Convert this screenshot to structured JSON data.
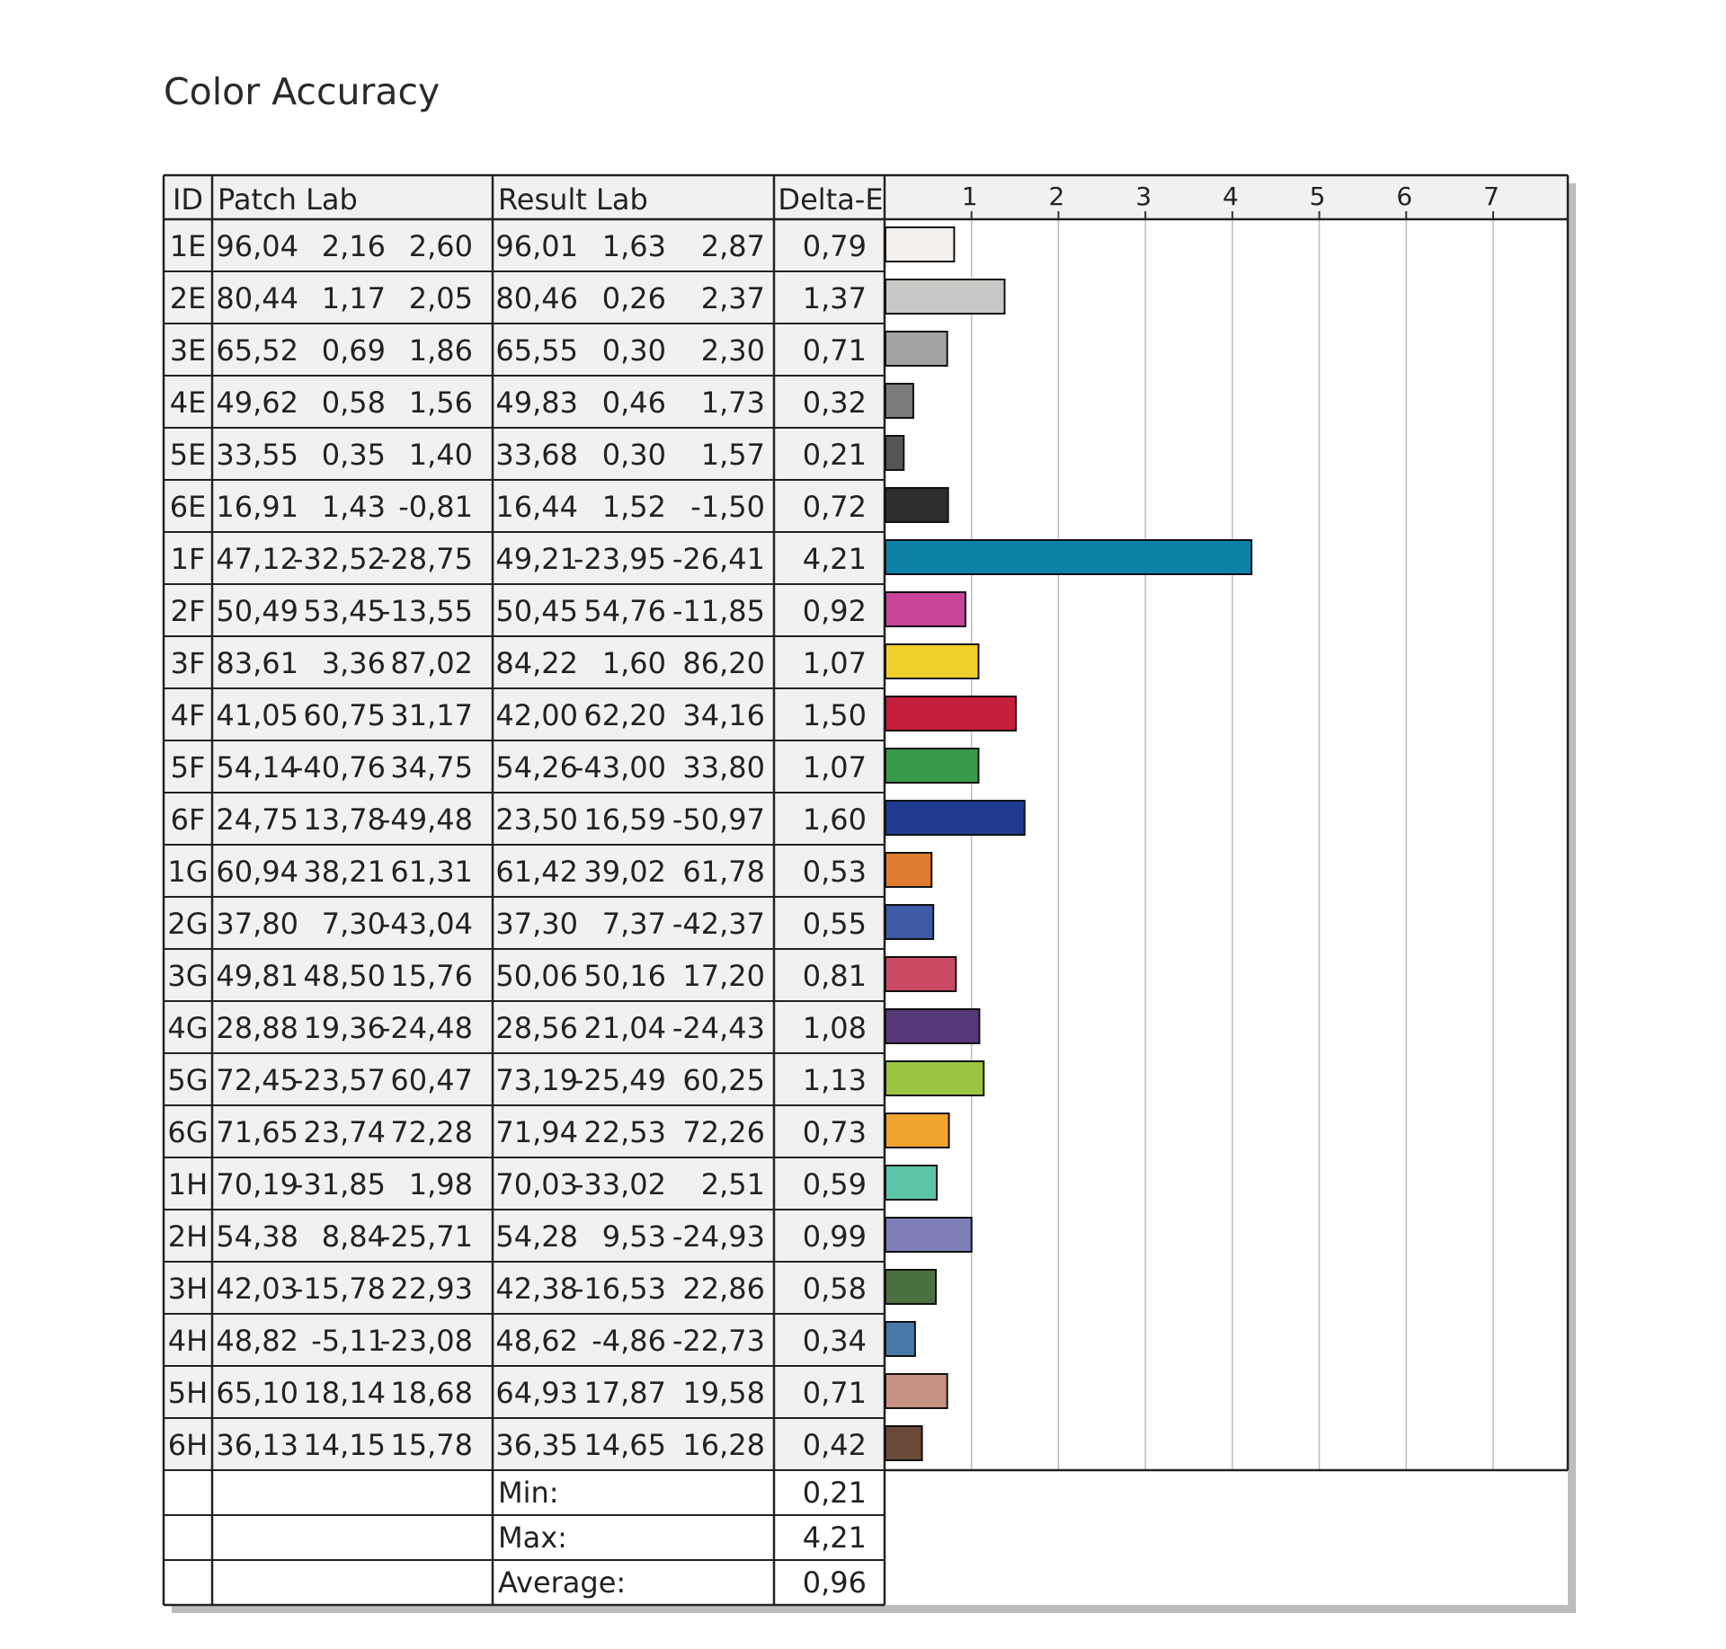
{
  "title": "Color Accuracy",
  "table": {
    "headers": {
      "id": "ID",
      "patch": "Patch Lab",
      "result": "Result Lab",
      "delta": "Delta-E"
    },
    "summary": [
      {
        "label": "Min:",
        "value": "0,21"
      },
      {
        "label": "Max:",
        "value": "4,21"
      },
      {
        "label": "Average:",
        "value": "0,96"
      }
    ]
  },
  "chart_data": {
    "type": "bar",
    "title": "Color Accuracy",
    "xlabel": "",
    "ylabel": "",
    "xlim": [
      0,
      8
    ],
    "ticks": [
      1,
      2,
      3,
      4,
      5,
      6,
      7
    ],
    "grid": true,
    "categories": [
      "1E",
      "2E",
      "3E",
      "4E",
      "5E",
      "6E",
      "1F",
      "2F",
      "3F",
      "4F",
      "5F",
      "6F",
      "1G",
      "2G",
      "3G",
      "4G",
      "5G",
      "6G",
      "1H",
      "2H",
      "3H",
      "4H",
      "5H",
      "6H"
    ],
    "values": [
      0.79,
      1.37,
      0.71,
      0.32,
      0.21,
      0.72,
      4.21,
      0.92,
      1.07,
      1.5,
      1.07,
      1.6,
      0.53,
      0.55,
      0.81,
      1.08,
      1.13,
      0.73,
      0.59,
      0.99,
      0.58,
      0.34,
      0.71,
      0.42
    ],
    "value_labels": [
      "0,79",
      "1,37",
      "0,71",
      "0,32",
      "0,21",
      "0,72",
      "4,21",
      "0,92",
      "1,07",
      "1,50",
      "1,07",
      "1,60",
      "0,53",
      "0,55",
      "0,81",
      "1,08",
      "1,13",
      "0,73",
      "0,59",
      "0,99",
      "0,58",
      "0,34",
      "0,71",
      "0,42"
    ],
    "patch_lab": [
      [
        "96,04",
        "2,16",
        "2,60"
      ],
      [
        "80,44",
        "1,17",
        "2,05"
      ],
      [
        "65,52",
        "0,69",
        "1,86"
      ],
      [
        "49,62",
        "0,58",
        "1,56"
      ],
      [
        "33,55",
        "0,35",
        "1,40"
      ],
      [
        "16,91",
        "1,43",
        "-0,81"
      ],
      [
        "47,12",
        "-32,52",
        "-28,75"
      ],
      [
        "50,49",
        "53,45",
        "-13,55"
      ],
      [
        "83,61",
        "3,36",
        "87,02"
      ],
      [
        "41,05",
        "60,75",
        "31,17"
      ],
      [
        "54,14",
        "-40,76",
        "34,75"
      ],
      [
        "24,75",
        "13,78",
        "-49,48"
      ],
      [
        "60,94",
        "38,21",
        "61,31"
      ],
      [
        "37,80",
        "7,30",
        "-43,04"
      ],
      [
        "49,81",
        "48,50",
        "15,76"
      ],
      [
        "28,88",
        "19,36",
        "-24,48"
      ],
      [
        "72,45",
        "-23,57",
        "60,47"
      ],
      [
        "71,65",
        "23,74",
        "72,28"
      ],
      [
        "70,19",
        "-31,85",
        "1,98"
      ],
      [
        "54,38",
        "8,84",
        "-25,71"
      ],
      [
        "42,03",
        "-15,78",
        "22,93"
      ],
      [
        "48,82",
        "-5,11",
        "-23,08"
      ],
      [
        "65,10",
        "18,14",
        "18,68"
      ],
      [
        "36,13",
        "14,15",
        "15,78"
      ]
    ],
    "result_lab": [
      [
        "96,01",
        "1,63",
        "2,87"
      ],
      [
        "80,46",
        "0,26",
        "2,37"
      ],
      [
        "65,55",
        "0,30",
        "2,30"
      ],
      [
        "49,83",
        "0,46",
        "1,73"
      ],
      [
        "33,68",
        "0,30",
        "1,57"
      ],
      [
        "16,44",
        "1,52",
        "-1,50"
      ],
      [
        "49,21",
        "-23,95",
        "-26,41"
      ],
      [
        "50,45",
        "54,76",
        "-11,85"
      ],
      [
        "84,22",
        "1,60",
        "86,20"
      ],
      [
        "42,00",
        "62,20",
        "34,16"
      ],
      [
        "54,26",
        "-43,00",
        "33,80"
      ],
      [
        "23,50",
        "16,59",
        "-50,97"
      ],
      [
        "61,42",
        "39,02",
        "61,78"
      ],
      [
        "37,30",
        "7,37",
        "-42,37"
      ],
      [
        "50,06",
        "50,16",
        "17,20"
      ],
      [
        "28,56",
        "21,04",
        "-24,43"
      ],
      [
        "73,19",
        "-25,49",
        "60,25"
      ],
      [
        "71,94",
        "22,53",
        "72,26"
      ],
      [
        "70,03",
        "-33,02",
        "2,51"
      ],
      [
        "54,28",
        "9,53",
        "-24,93"
      ],
      [
        "42,38",
        "-16,53",
        "22,86"
      ],
      [
        "48,62",
        "-4,86",
        "-22,73"
      ],
      [
        "64,93",
        "17,87",
        "19,58"
      ],
      [
        "36,35",
        "14,65",
        "16,28"
      ]
    ],
    "bar_colors": [
      "#f2efed",
      "#c8c8c6",
      "#a3a3a3",
      "#7b7b7b",
      "#555555",
      "#2e2e2e",
      "#0f80a8",
      "#c8459a",
      "#f0d02c",
      "#c41f3b",
      "#3a9a4b",
      "#1e3b8f",
      "#e07b2f",
      "#3d5aa6",
      "#cc4a63",
      "#563778",
      "#9ac441",
      "#efa42e",
      "#5cc4a6",
      "#7e7fb8",
      "#4b7040",
      "#4c78a8",
      "#c79284",
      "#6c4a3a"
    ]
  }
}
